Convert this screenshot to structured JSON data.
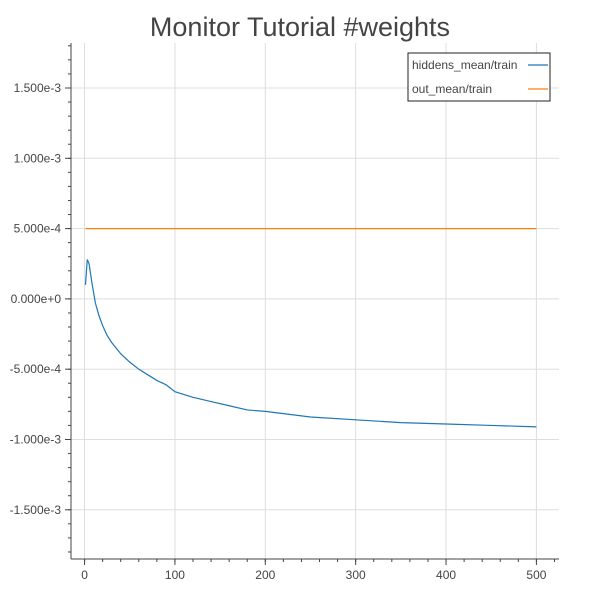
{
  "chart_data": {
    "type": "line",
    "title": "Monitor Tutorial #weights",
    "xlabel": "",
    "ylabel": "",
    "xlim": [
      -15,
      525
    ],
    "ylim": [
      -0.00185,
      0.00182
    ],
    "x_ticks": [
      0,
      100,
      200,
      300,
      400,
      500
    ],
    "x_tick_labels": [
      "0",
      "100",
      "200",
      "300",
      "400",
      "500"
    ],
    "y_ticks": [
      0.0015,
      0.001,
      0.0005,
      0,
      -0.0005,
      -0.001,
      -0.0015
    ],
    "y_tick_labels": [
      "1.500e-3",
      "1.000e-3",
      "5.000e-4",
      "0.000e+0",
      "-5.000e-4",
      "-1.000e-3",
      "-1.500e-3"
    ],
    "grid": true,
    "legend_position": "top-right",
    "series": [
      {
        "name": "hiddens_mean/train",
        "color": "#1f77b4",
        "points": [
          [
            1,
            0.0001
          ],
          [
            3,
            0.00028
          ],
          [
            5,
            0.00025
          ],
          [
            8,
            0.00012
          ],
          [
            12,
            -3e-05
          ],
          [
            16,
            -0.00012
          ],
          [
            20,
            -0.00019
          ],
          [
            25,
            -0.00026
          ],
          [
            30,
            -0.00031
          ],
          [
            35,
            -0.00035
          ],
          [
            40,
            -0.00039
          ],
          [
            50,
            -0.00045
          ],
          [
            60,
            -0.0005
          ],
          [
            70,
            -0.00054
          ],
          [
            80,
            -0.00058
          ],
          [
            90,
            -0.00061
          ],
          [
            100,
            -0.00066
          ],
          [
            120,
            -0.0007
          ],
          [
            140,
            -0.00073
          ],
          [
            160,
            -0.00076
          ],
          [
            180,
            -0.00079
          ],
          [
            200,
            -0.0008
          ],
          [
            250,
            -0.00084
          ],
          [
            300,
            -0.00086
          ],
          [
            350,
            -0.00088
          ],
          [
            400,
            -0.00089
          ],
          [
            450,
            -0.0009
          ],
          [
            500,
            -0.00091
          ]
        ]
      },
      {
        "name": "out_mean/train",
        "color": "#ff7f0e",
        "points": [
          [
            1,
            0.0005
          ],
          [
            500,
            0.0005
          ]
        ]
      }
    ]
  }
}
